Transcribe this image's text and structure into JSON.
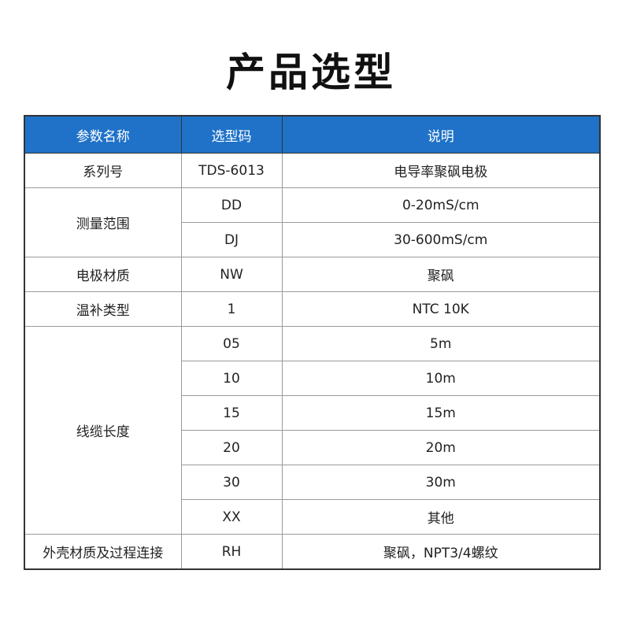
{
  "title": "产品选型",
  "header": {
    "colors": {
      "header_bg": "#1f72c8"
    },
    "columns": [
      "参数名称",
      "选型码",
      "说明"
    ]
  },
  "rows": [
    {
      "param": "系列号",
      "options": [
        {
          "code": "TDS-6013",
          "desc": "电导率聚砜电极"
        }
      ]
    },
    {
      "param": "测量范围",
      "options": [
        {
          "code": "DD",
          "desc": "0-20mS/cm"
        },
        {
          "code": "DJ",
          "desc": "30-600mS/cm"
        }
      ]
    },
    {
      "param": "电极材质",
      "options": [
        {
          "code": "NW",
          "desc": "聚砜"
        }
      ]
    },
    {
      "param": "温补类型",
      "options": [
        {
          "code": "1",
          "desc": "NTC 10K"
        }
      ]
    },
    {
      "param": "线缆长度",
      "options": [
        {
          "code": "05",
          "desc": "5m"
        },
        {
          "code": "10",
          "desc": "10m"
        },
        {
          "code": "15",
          "desc": "15m"
        },
        {
          "code": "20",
          "desc": "20m"
        },
        {
          "code": "30",
          "desc": "30m"
        },
        {
          "code": "XX",
          "desc": "其他"
        }
      ]
    },
    {
      "param": "外壳材质及过程连接",
      "options": [
        {
          "code": "RH",
          "desc": "聚砜，NPT3/4螺纹"
        }
      ]
    }
  ]
}
